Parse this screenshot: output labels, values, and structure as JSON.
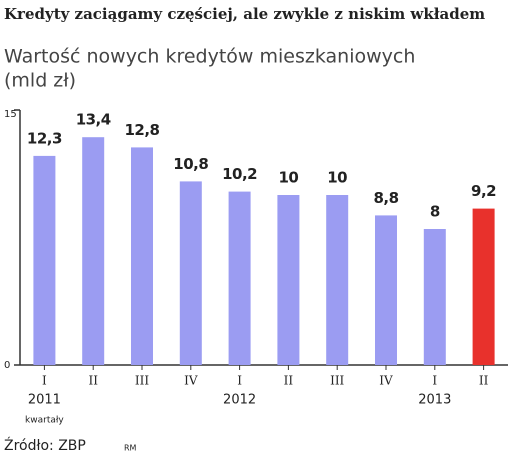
{
  "chart_data": {
    "type": "bar",
    "title": "Kredyty zaciągamy częściej, ale zwykle z niskim wkładem",
    "subtitle": "Wartość nowych kredytów mieszkaniowych",
    "unit": "(mld zł)",
    "categories": [
      "I",
      "II",
      "III",
      "IV",
      "I",
      "II",
      "III",
      "IV",
      "I",
      "II"
    ],
    "group_labels": [
      "2011",
      null,
      null,
      null,
      "2012",
      null,
      null,
      null,
      "2013",
      null
    ],
    "x_note": "kwartały",
    "values": [
      12.3,
      13.4,
      12.8,
      10.8,
      10.2,
      10,
      10,
      8.8,
      8,
      9.2
    ],
    "value_labels": [
      "12,3",
      "13,4",
      "12,8",
      "10,8",
      "10,2",
      "10",
      "10",
      "8,8",
      "8",
      "9,2"
    ],
    "colors": [
      "#9b9cf2",
      "#9b9cf2",
      "#9b9cf2",
      "#9b9cf2",
      "#9b9cf2",
      "#9b9cf2",
      "#9b9cf2",
      "#9b9cf2",
      "#9b9cf2",
      "#e8312c"
    ],
    "ylim": [
      0,
      15
    ],
    "yticks": [
      0,
      15
    ],
    "source": "Źródło: ZBP",
    "credit": "RM"
  }
}
